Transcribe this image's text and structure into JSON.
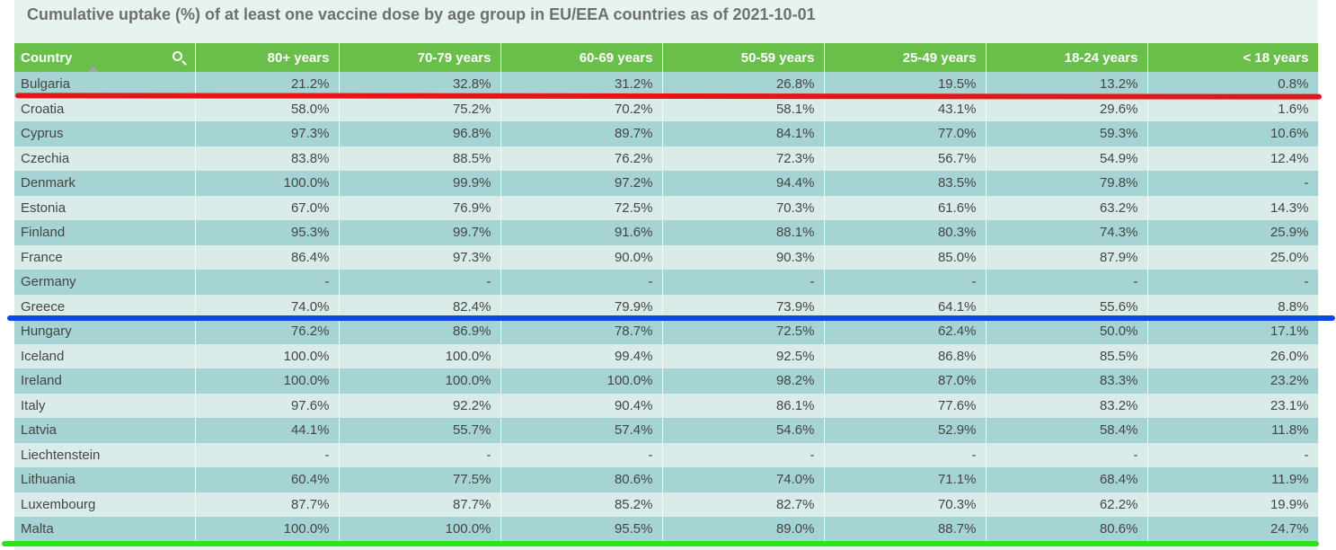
{
  "title": "Cumulative uptake (%) of at least one vaccine dose by age group in EU/EEA countries as of 2021-10-01",
  "icons": {
    "search": "search-icon",
    "sort": "sort-ascending-icon"
  },
  "colors": {
    "header": "#6abf4b",
    "row_odd": "#a6d3d3",
    "row_even": "#d9ecea",
    "mark_red": "#e4151b",
    "mark_blue": "#0b49e6",
    "mark_green": "#2ee21b"
  },
  "table": {
    "headers": [
      "Country",
      "80+ years",
      "70-79 years",
      "60-69 years",
      "50-59 years",
      "25-49 years",
      "18-24 years",
      "< 18 years"
    ],
    "rows": [
      [
        "Bulgaria",
        "21.2%",
        "32.8%",
        "31.2%",
        "26.8%",
        "19.5%",
        "13.2%",
        "0.8%"
      ],
      [
        "Croatia",
        "58.0%",
        "75.2%",
        "70.2%",
        "58.1%",
        "43.1%",
        "29.6%",
        "1.6%"
      ],
      [
        "Cyprus",
        "97.3%",
        "96.8%",
        "89.7%",
        "84.1%",
        "77.0%",
        "59.3%",
        "10.6%"
      ],
      [
        "Czechia",
        "83.8%",
        "88.5%",
        "76.2%",
        "72.3%",
        "56.7%",
        "54.9%",
        "12.4%"
      ],
      [
        "Denmark",
        "100.0%",
        "99.9%",
        "97.2%",
        "94.4%",
        "83.5%",
        "79.8%",
        "-"
      ],
      [
        "Estonia",
        "67.0%",
        "76.9%",
        "72.5%",
        "70.3%",
        "61.6%",
        "63.2%",
        "14.3%"
      ],
      [
        "Finland",
        "95.3%",
        "99.7%",
        "91.6%",
        "88.1%",
        "80.3%",
        "74.3%",
        "25.9%"
      ],
      [
        "France",
        "86.4%",
        "97.3%",
        "90.0%",
        "90.3%",
        "85.0%",
        "87.9%",
        "25.0%"
      ],
      [
        "Germany",
        "-",
        "-",
        "-",
        "-",
        "-",
        "-",
        "-"
      ],
      [
        "Greece",
        "74.0%",
        "82.4%",
        "79.9%",
        "73.9%",
        "64.1%",
        "55.6%",
        "8.8%"
      ],
      [
        "Hungary",
        "76.2%",
        "86.9%",
        "78.7%",
        "72.5%",
        "62.4%",
        "50.0%",
        "17.1%"
      ],
      [
        "Iceland",
        "100.0%",
        "100.0%",
        "99.4%",
        "92.5%",
        "86.8%",
        "85.5%",
        "26.0%"
      ],
      [
        "Ireland",
        "100.0%",
        "100.0%",
        "100.0%",
        "98.2%",
        "87.0%",
        "83.3%",
        "23.2%"
      ],
      [
        "Italy",
        "97.6%",
        "92.2%",
        "90.4%",
        "86.1%",
        "77.6%",
        "83.2%",
        "23.1%"
      ],
      [
        "Latvia",
        "44.1%",
        "55.7%",
        "57.4%",
        "54.6%",
        "52.9%",
        "58.4%",
        "11.8%"
      ],
      [
        "Liechtenstein",
        "-",
        "-",
        "-",
        "-",
        "-",
        "-",
        "-"
      ],
      [
        "Lithuania",
        "60.4%",
        "77.5%",
        "80.6%",
        "74.0%",
        "71.1%",
        "68.4%",
        "11.9%"
      ],
      [
        "Luxembourg",
        "87.7%",
        "87.7%",
        "85.2%",
        "82.7%",
        "70.3%",
        "62.2%",
        "19.9%"
      ],
      [
        "Malta",
        "100.0%",
        "100.0%",
        "95.5%",
        "89.0%",
        "88.7%",
        "80.6%",
        "24.7%"
      ]
    ]
  }
}
